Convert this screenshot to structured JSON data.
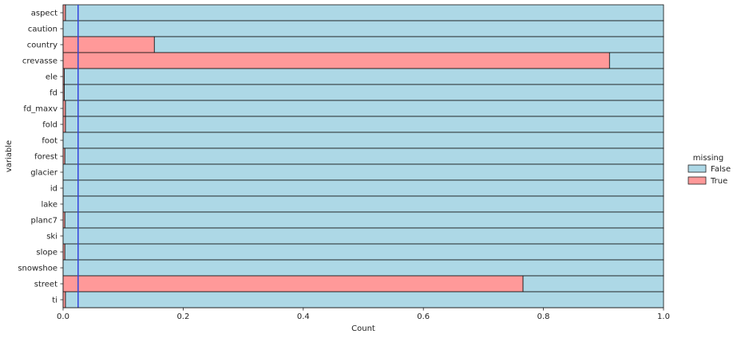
{
  "chart_data": {
    "type": "bar",
    "orientation": "horizontal",
    "stacked": true,
    "normalized": true,
    "xlabel": "Count",
    "ylabel": "variable",
    "xlim": [
      0,
      1
    ],
    "xticks": [
      "0.0",
      "0.2",
      "0.4",
      "0.6",
      "0.8",
      "1.0"
    ],
    "reference_line_x": 0.025,
    "reference_line_color": "#3344dd",
    "grid": false,
    "legend": {
      "title": "missing",
      "placement": "right",
      "entries": [
        {
          "label": "False",
          "color": "#add8e6"
        },
        {
          "label": "True",
          "color": "#ff9999"
        }
      ]
    },
    "categories": [
      "aspect",
      "caution",
      "country",
      "crevasse",
      "ele",
      "fd",
      "fd_maxv",
      "fold",
      "foot",
      "forest",
      "glacier",
      "id",
      "lake",
      "planc7",
      "ski",
      "slope",
      "snowshoe",
      "street",
      "ti"
    ],
    "series": [
      {
        "name": "True",
        "color": "#ff9999",
        "values": [
          0.004,
          0.0,
          0.152,
          0.91,
          0.002,
          0.002,
          0.004,
          0.004,
          0.0,
          0.003,
          0.0,
          0.0,
          0.0,
          0.003,
          0.0,
          0.003,
          0.0,
          0.766,
          0.004
        ]
      },
      {
        "name": "False",
        "color": "#add8e6",
        "values": [
          0.996,
          1.0,
          0.848,
          0.09,
          0.998,
          0.998,
          0.996,
          0.996,
          1.0,
          0.997,
          1.0,
          1.0,
          1.0,
          0.997,
          1.0,
          0.997,
          1.0,
          0.234,
          0.996
        ]
      }
    ]
  }
}
